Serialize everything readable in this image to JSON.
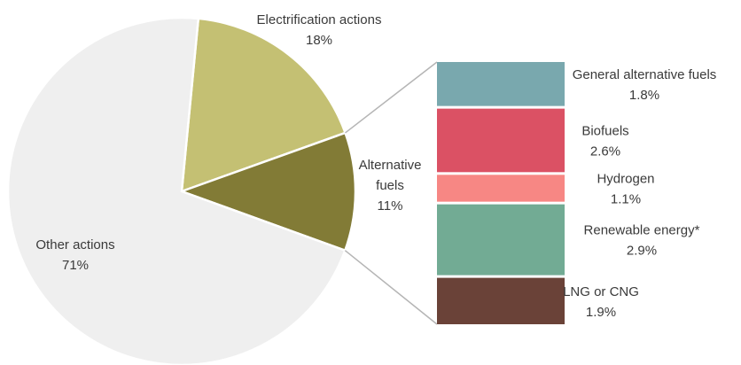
{
  "chart_data": {
    "type": "pie",
    "title": "",
    "pie": {
      "slices": [
        {
          "name": "Electrification actions",
          "pct_text": "18%",
          "value": 18,
          "color": "#c4c073"
        },
        {
          "name": "Alternative fuels",
          "name_lines": [
            "Alternative",
            "fuels"
          ],
          "pct_text": "11%",
          "value": 11,
          "color": "#827b36"
        },
        {
          "name": "Other actions",
          "pct_text": "71%",
          "value": 71,
          "color": "#efefef"
        }
      ]
    },
    "breakdown": {
      "parent": "Alternative fuels",
      "segments": [
        {
          "name": "General alternative fuels",
          "pct_text": "1.8%",
          "value": 1.8,
          "color": "#79a8ae"
        },
        {
          "name": "Biofuels",
          "pct_text": "2.6%",
          "value": 2.6,
          "color": "#db5164"
        },
        {
          "name": "Hydrogen",
          "pct_text": "1.1%",
          "value": 1.1,
          "color": "#f78784"
        },
        {
          "name": "Renewable energy*",
          "pct_text": "2.9%",
          "value": 2.9,
          "color": "#72ab94"
        },
        {
          "name": "LNG or CNG",
          "pct_text": "1.9%",
          "value": 1.9,
          "color": "#6a4238"
        }
      ]
    },
    "colors": {
      "connector": "#b5b5b5",
      "text": "#3a3a3a"
    }
  }
}
